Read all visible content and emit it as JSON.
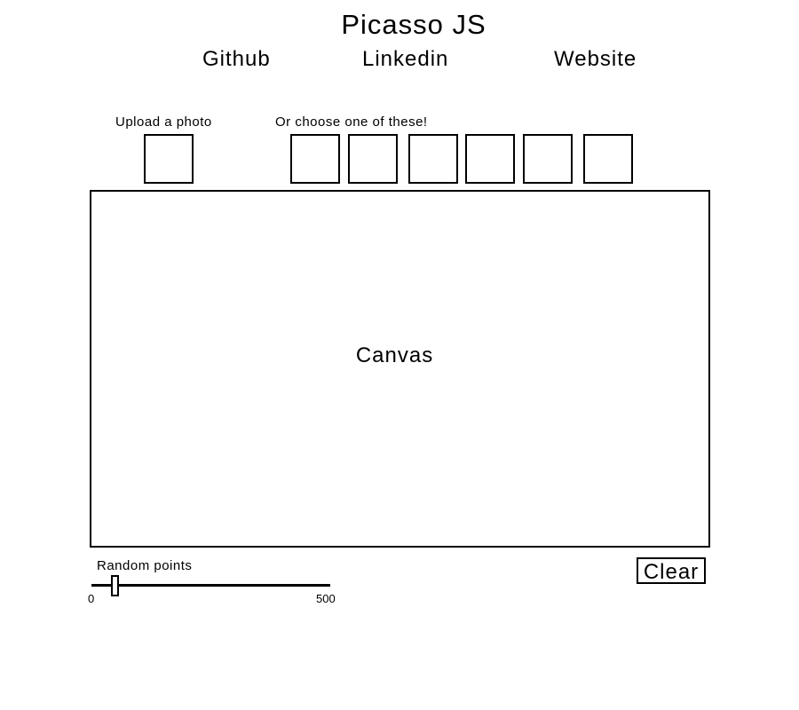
{
  "header": {
    "title": "Picasso JS",
    "nav": [
      {
        "label": "Github"
      },
      {
        "label": "Linkedin"
      },
      {
        "label": "Website"
      }
    ]
  },
  "upload": {
    "label": "Upload a photo"
  },
  "presets": {
    "label": "Or choose one of these!",
    "count": 6
  },
  "canvas": {
    "label": "Canvas"
  },
  "controls": {
    "slider_label": "Random points",
    "slider_min": "0",
    "slider_max": "500",
    "slider_value": 50,
    "clear_label": "Clear"
  }
}
